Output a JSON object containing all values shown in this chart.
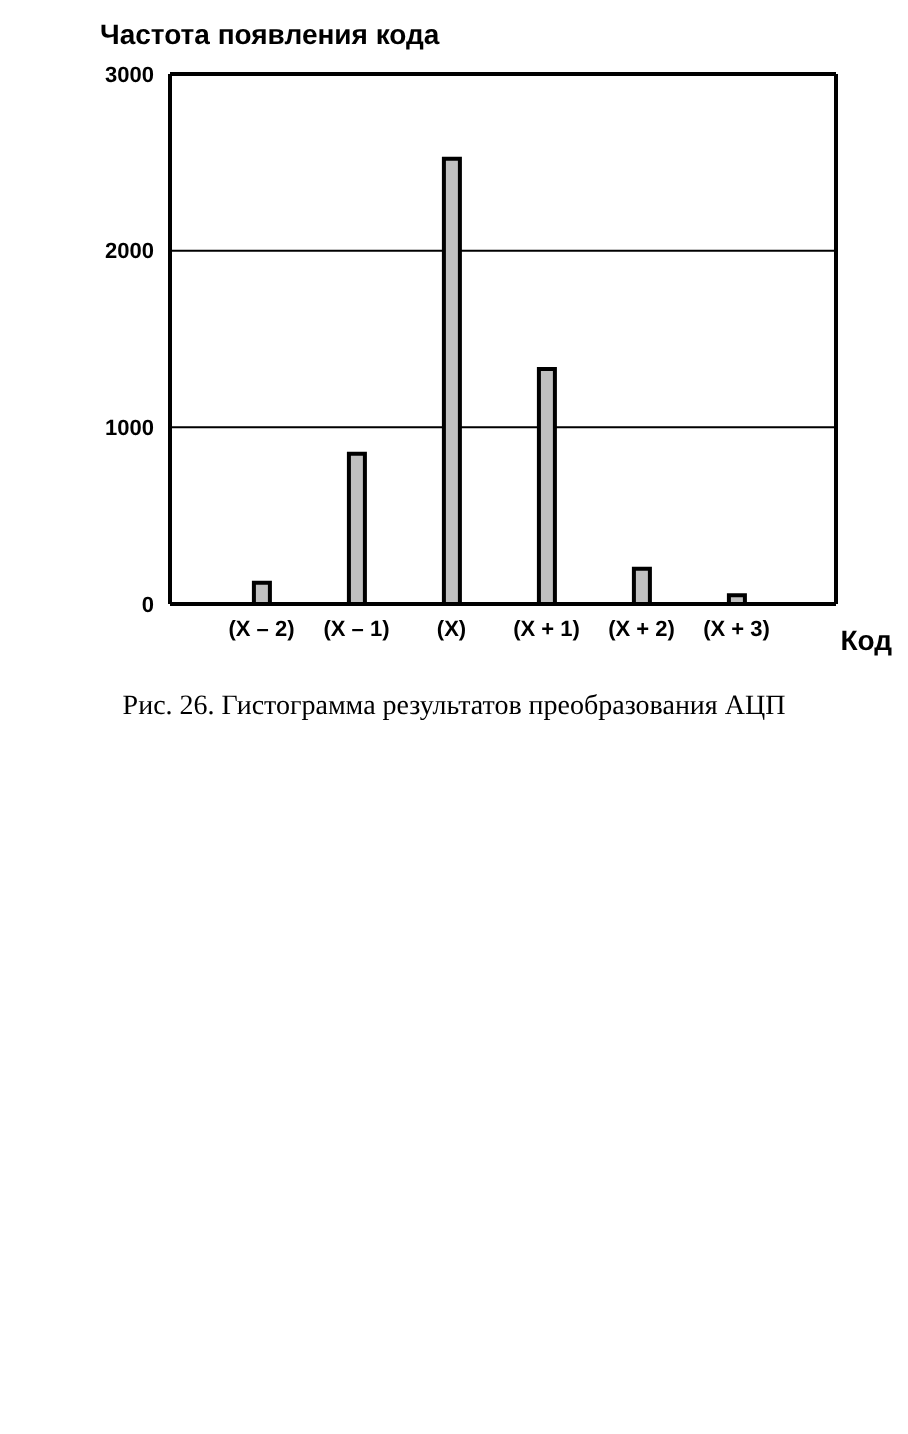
{
  "chart_data": {
    "type": "bar",
    "ylabel": "Частота появления кода",
    "xlabel": "Код",
    "categories": [
      "(X – 2)",
      "(X – 1)",
      "(X)",
      "(X + 1)",
      "(X + 2)",
      "(X + 3)"
    ],
    "values": [
      120,
      850,
      2520,
      1330,
      200,
      50
    ],
    "color": "#c0c0c0",
    "ylim": [
      0,
      3000
    ],
    "yticks": [
      0,
      1000,
      2000,
      3000
    ],
    "grid": "y",
    "legend": false,
    "annotations": [
      "Рис. 26. Гистограмма результатов преобразования АЦП"
    ]
  }
}
